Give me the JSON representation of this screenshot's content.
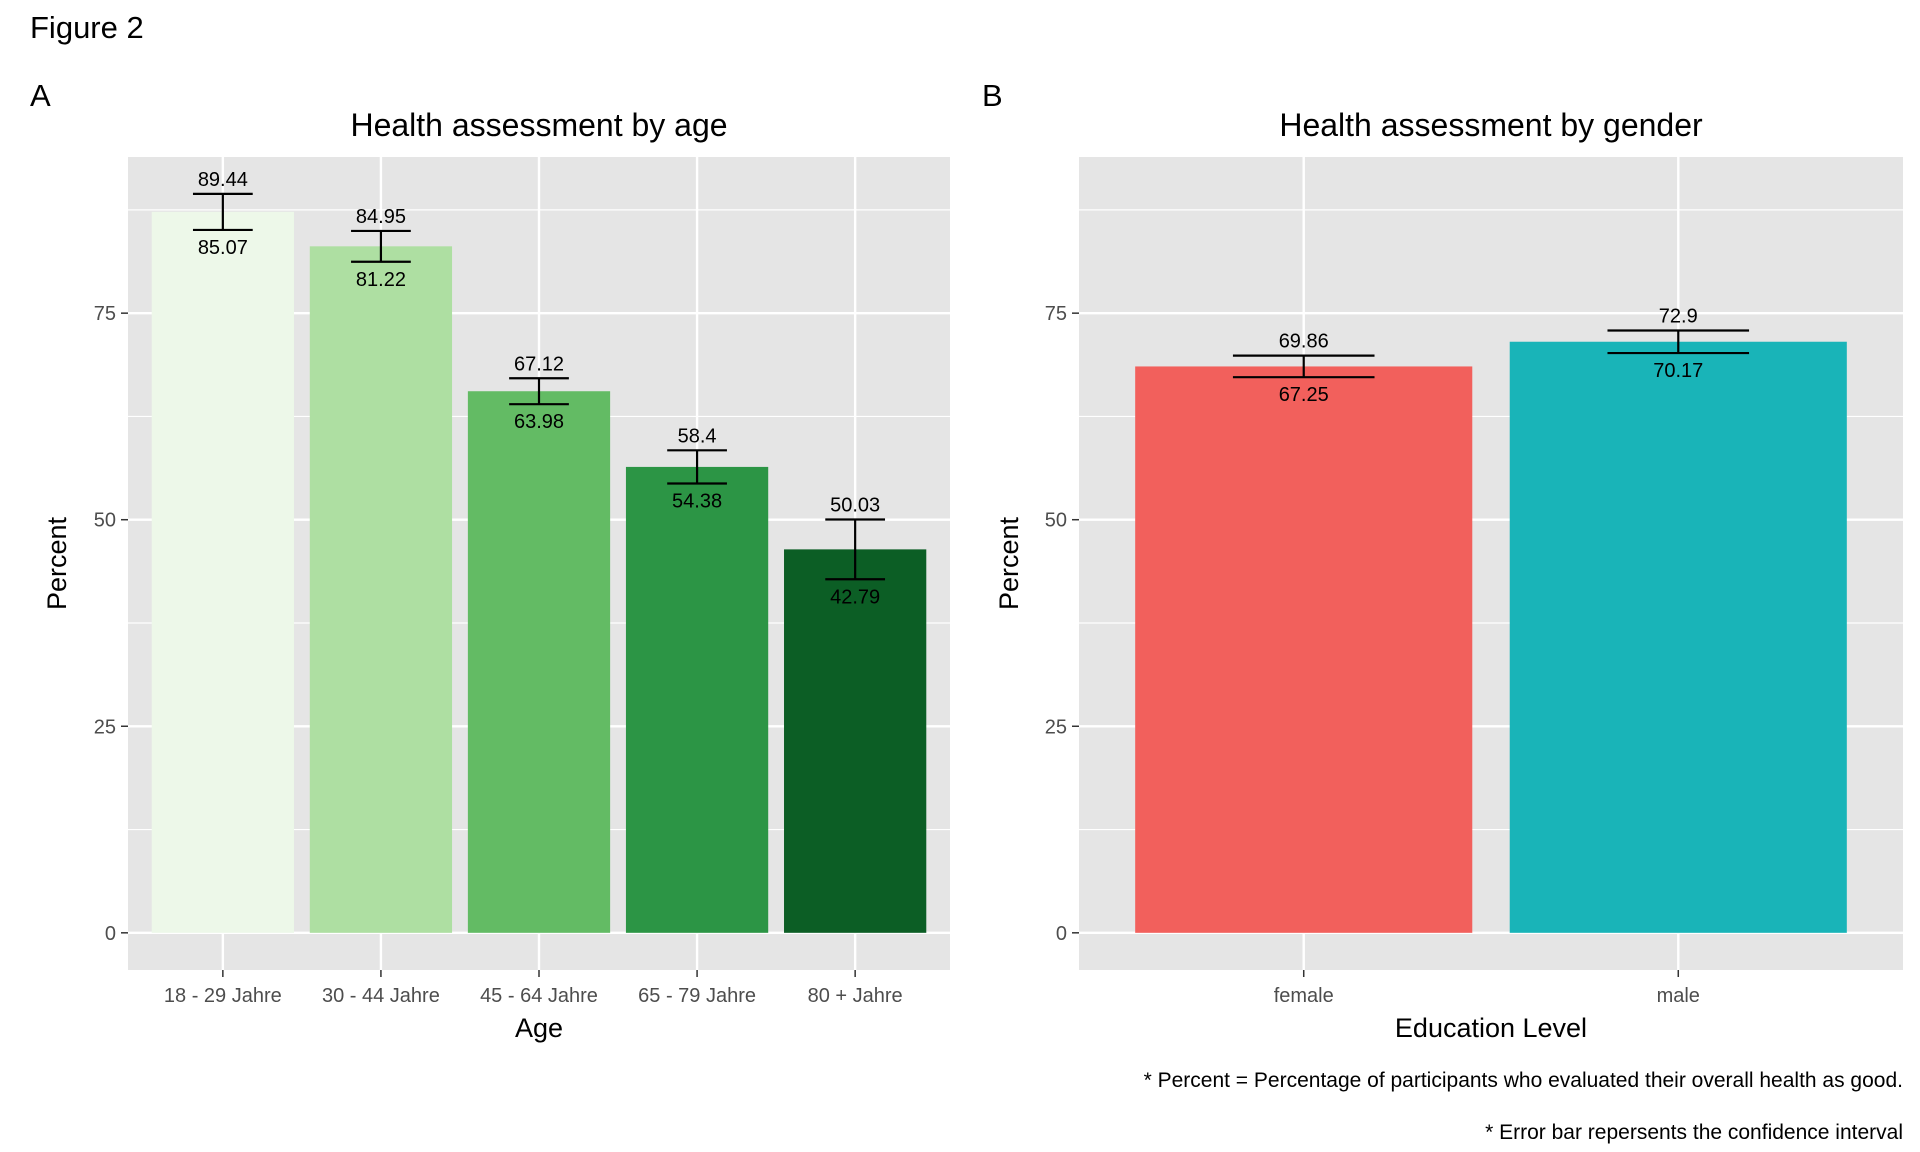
{
  "figure_title": "Figure 2",
  "footnotes": [
    "* Percent = Percentage of participants who evaluated their overall health as good.",
    "* Error bar repersents the confidence interval"
  ],
  "colors": {
    "panel_bg": "#e5e5e5",
    "grid": "#ffffff",
    "axis_text": "#4d4d4d",
    "error_bar": "#000000"
  },
  "chart_data": [
    {
      "type": "bar",
      "panel_tag": "A",
      "title": "Health assessment by age",
      "xlabel": "Age",
      "ylabel": "Percent",
      "ylim": [
        -4.5,
        93.9
      ],
      "yticks": [
        0,
        25,
        50,
        75
      ],
      "grid": true,
      "legend": "none",
      "categories": [
        "18 - 29 Jahre",
        "30 - 44 Jahre",
        "45 - 64 Jahre",
        "65 - 79 Jahre",
        "80 + Jahre"
      ],
      "values": [
        87.26,
        83.09,
        65.55,
        56.39,
        46.41
      ],
      "ci_upper": [
        89.44,
        84.95,
        67.12,
        58.4,
        50.03
      ],
      "ci_lower": [
        85.07,
        81.22,
        63.98,
        54.38,
        42.79
      ],
      "upper_labels": [
        "89.44",
        "84.95",
        "67.12",
        "58.4",
        "50.03"
      ],
      "lower_labels": [
        "85.07",
        "81.22",
        "63.98",
        "54.38",
        "42.79"
      ],
      "bar_colors": [
        "#edf8e9",
        "#aedfa2",
        "#63bb64",
        "#2c9545",
        "#0c5e25"
      ]
    },
    {
      "type": "bar",
      "panel_tag": "B",
      "title": "Health assessment by gender",
      "xlabel": "Education Level",
      "ylabel": "Percent",
      "ylim": [
        -4.5,
        93.9
      ],
      "yticks": [
        0,
        25,
        50,
        75
      ],
      "grid": true,
      "legend": "none",
      "categories": [
        "female",
        "male"
      ],
      "values": [
        68.55,
        71.54
      ],
      "ci_upper": [
        69.86,
        72.9
      ],
      "ci_lower": [
        67.25,
        70.17
      ],
      "upper_labels": [
        "69.86",
        "72.9"
      ],
      "lower_labels": [
        "67.25",
        "70.17"
      ],
      "bar_colors": [
        "#f2605c",
        "#19b4b8"
      ]
    }
  ]
}
